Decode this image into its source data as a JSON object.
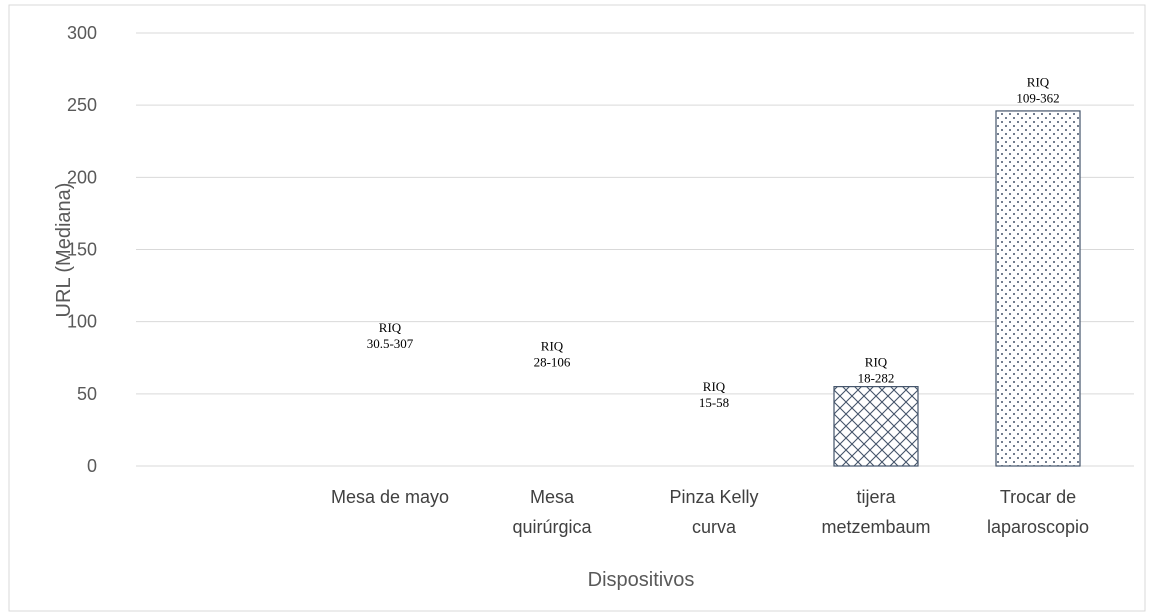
{
  "chart_data": {
    "type": "bar",
    "categories": [
      [
        "Mesa de mayo"
      ],
      [
        "Mesa",
        "quirúrgica"
      ],
      [
        "Pinza Kelly",
        "curva"
      ],
      [
        "tijera",
        "metzembaum"
      ],
      [
        "Trocar de",
        "laparoscopio"
      ]
    ],
    "values": [
      0,
      0,
      0,
      55,
      246
    ],
    "data_labels": [
      [
        "RIQ",
        "30.5-307"
      ],
      [
        "RIQ",
        "28-106"
      ],
      [
        "RIQ",
        "15-58"
      ],
      [
        "RIQ",
        "18-282"
      ],
      [
        "RIQ",
        "109-362"
      ]
    ],
    "label_values": [
      93,
      80,
      52,
      69,
      263
    ],
    "patterns": [
      "none",
      "none",
      "none",
      "crosshatch",
      "dots"
    ],
    "ylim": [
      0,
      300
    ],
    "yticks": [
      0,
      50,
      100,
      150,
      200,
      250,
      300
    ],
    "ylabel": "URL (Mediana)",
    "xlabel": "Dispositivos",
    "grid": true,
    "colors": {
      "bar_stroke": "#44546a",
      "grid": "#d9d9d9",
      "axis_text": "#595959"
    }
  }
}
